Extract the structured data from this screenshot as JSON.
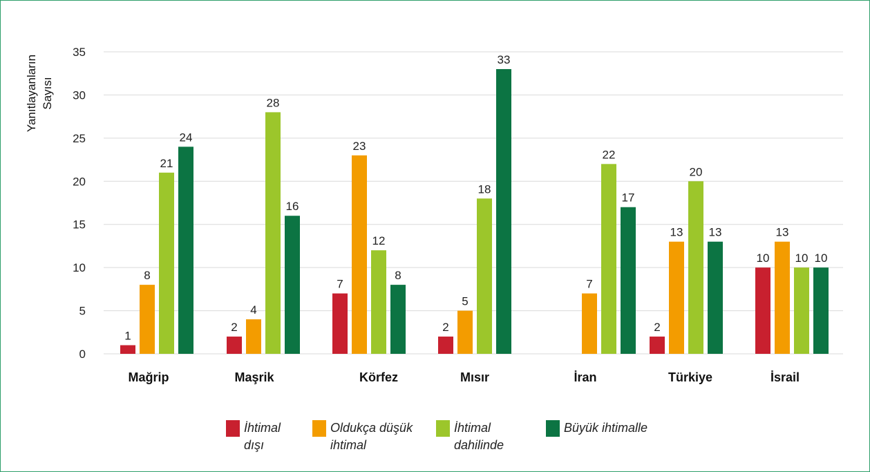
{
  "chart_data": {
    "type": "bar",
    "ylabel_lines": [
      "Yanıtlayanların",
      "Sayısı"
    ],
    "ylim": [
      0,
      35
    ],
    "yticks": [
      0,
      5,
      10,
      15,
      20,
      25,
      30,
      35
    ],
    "grid": true,
    "legend_placement": "bottom",
    "categories": [
      "Mağrip",
      "Maşrik",
      "Körfez",
      "Mısır",
      "İran",
      "Türkiye",
      "İsrail"
    ],
    "series": [
      {
        "name_lines": [
          "İhtimal",
          "dışı"
        ],
        "color": "#c8202f",
        "values": [
          1,
          2,
          7,
          2,
          null,
          2,
          10
        ]
      },
      {
        "name_lines": [
          "Oldukça düşük",
          "ihtimal"
        ],
        "color": "#f39c00",
        "values": [
          8,
          4,
          23,
          5,
          7,
          13,
          13
        ]
      },
      {
        "name_lines": [
          "İhtimal",
          "dahilinde"
        ],
        "color": "#9cc62b",
        "values": [
          21,
          28,
          12,
          18,
          22,
          20,
          10
        ]
      },
      {
        "name_lines": [
          "Büyük ihtimalle"
        ],
        "color": "#0c7443",
        "values": [
          24,
          16,
          8,
          33,
          17,
          13,
          10
        ]
      }
    ]
  }
}
